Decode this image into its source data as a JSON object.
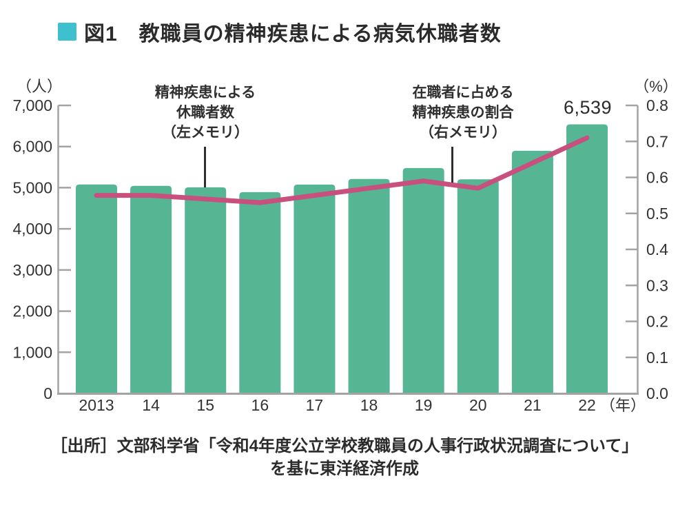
{
  "header": {
    "marker_color": "#3ec0ce",
    "title": "図1　教職員の精神疾患による病気休職者数"
  },
  "chart_data": {
    "type": "bar",
    "categories": [
      "2013",
      "14",
      "15",
      "16",
      "17",
      "18",
      "19",
      "20",
      "21",
      "22"
    ],
    "series": [
      {
        "name": "精神疾患による休職者数（左メモリ）",
        "type": "bar",
        "axis": "left",
        "color": "#56b593",
        "values": [
          5078,
          5045,
          5009,
          4891,
          5077,
          5212,
          5478,
          5203,
          5897,
          6539
        ]
      },
      {
        "name": "在職者に占める精神疾患の割合（右メモリ）",
        "type": "line",
        "axis": "right",
        "color": "#c8507e",
        "values": [
          0.55,
          0.55,
          0.54,
          0.53,
          0.55,
          0.57,
          0.59,
          0.57,
          0.64,
          0.71
        ]
      }
    ],
    "left_axis": {
      "unit": "（人）",
      "min": 0,
      "max": 7000,
      "step": 1000,
      "tick_labels": [
        "0",
        "1,000",
        "2,000",
        "3,000",
        "4,000",
        "5,000",
        "6,000",
        "7,000"
      ]
    },
    "right_axis": {
      "unit": "（%）",
      "min": 0,
      "max": 0.8,
      "step": 0.1,
      "tick_labels": [
        "0.0",
        "0.1",
        "0.2",
        "0.3",
        "0.4",
        "0.5",
        "0.6",
        "0.7",
        "0.8"
      ]
    },
    "x_axis_unit": "（年）",
    "axis_color": "#a3a3a3",
    "text_color": "#333333",
    "grid": "off",
    "data_label": {
      "index": 9,
      "text": "6,539"
    },
    "annotations": [
      {
        "target": "bars",
        "text": "精神疾患による\n休職者数\n（左メモリ）"
      },
      {
        "target": "line",
        "text": "在職者に占める\n精神疾患の割合\n（右メモリ）"
      }
    ]
  },
  "source": {
    "line1": "［出所］文部科学省「令和4年度公立学校教職員の人事行政状況調査について」",
    "line2": "を基に東洋経済作成"
  }
}
